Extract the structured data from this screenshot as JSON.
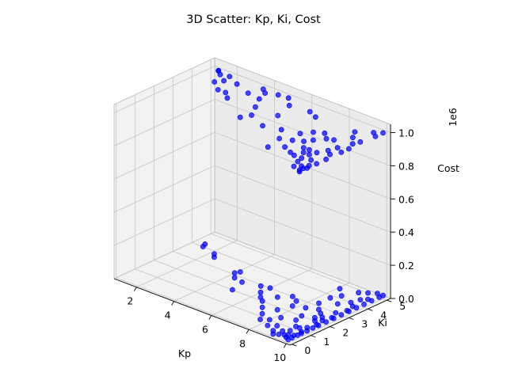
{
  "chart_data": {
    "type": "scatter",
    "title": "3D Scatter: Kp, Ki, Cost",
    "xlabel": "Kp",
    "ylabel": "Ki",
    "zlabel": "Cost",
    "z_offset_label": "1e6",
    "x_ticks": [
      "2",
      "4",
      "6",
      "8",
      "10"
    ],
    "y_ticks": [
      "0",
      "1",
      "2",
      "3",
      "4",
      "5"
    ],
    "z_ticks": [
      "0.0",
      "0.2",
      "0.4",
      "0.6",
      "0.8",
      "1.0"
    ],
    "xlim": [
      0.8,
      10.2
    ],
    "ylim": [
      -0.1,
      5.2
    ],
    "zlim": [
      0,
      1050000
    ],
    "grid": true,
    "marker_color": "#0000ff",
    "series": [
      {
        "points": [
          [
            1.2,
            5.0,
            1000000
          ],
          [
            1.2,
            5.0,
            1000000
          ],
          [
            1.5,
            4.8,
            1000000
          ],
          [
            2.0,
            4.5,
            1000000
          ],
          [
            1.8,
            4.2,
            1000000
          ],
          [
            2.8,
            3.8,
            1000000
          ],
          [
            3.2,
            3.5,
            1000000
          ],
          [
            2.4,
            3.8,
            1000000
          ],
          [
            1.9,
            4.9,
            1000000
          ],
          [
            2.6,
            4.6,
            1000000
          ],
          [
            3.5,
            4.3,
            1000000
          ],
          [
            4.0,
            4.7,
            1000000
          ],
          [
            4.5,
            4.9,
            1000000
          ],
          [
            5.0,
            4.95,
            1000000
          ],
          [
            3.7,
            4.9,
            1000000
          ],
          [
            4.2,
            4.2,
            1000000
          ],
          [
            5.5,
            4.5,
            1000000
          ],
          [
            4.6,
            3.6,
            1000000
          ],
          [
            5.0,
            3.0,
            1000000
          ],
          [
            4.8,
            2.6,
            1000000
          ],
          [
            5.8,
            3.6,
            1000000
          ],
          [
            6.5,
            4.6,
            1000000
          ],
          [
            7.0,
            4.4,
            1000000
          ],
          [
            6.0,
            2.6,
            1000000
          ],
          [
            6.8,
            2.8,
            1000000
          ],
          [
            7.3,
            2.2,
            1000000
          ],
          [
            7.6,
            3.0,
            1000000
          ],
          [
            7.8,
            2.4,
            1000000
          ],
          [
            8.2,
            2.6,
            1000000
          ],
          [
            8.0,
            1.8,
            1000000
          ],
          [
            8.5,
            1.6,
            1000000
          ],
          [
            8.6,
            2.2,
            1000000
          ],
          [
            8.9,
            1.9,
            1000000
          ],
          [
            9.2,
            1.5,
            1000000
          ],
          [
            9.3,
            2.2,
            1000000
          ],
          [
            9.5,
            2.6,
            1000000
          ],
          [
            9.8,
            2.4,
            1000000
          ],
          [
            9.6,
            3.0,
            1000000
          ],
          [
            10.0,
            3.2,
            1000000
          ],
          [
            9.9,
            3.9,
            1000000
          ],
          [
            10.0,
            4.6,
            1000000
          ],
          [
            10.0,
            5.0,
            1000000
          ],
          [
            9.7,
            4.8,
            1000000
          ],
          [
            9.4,
            4.0,
            1000000
          ],
          [
            9.0,
            3.4,
            1000000
          ],
          [
            8.7,
            3.3,
            1000000
          ],
          [
            8.4,
            2.9,
            1000000
          ],
          [
            8.3,
            3.6,
            1000000
          ],
          [
            7.9,
            3.4,
            1000000
          ],
          [
            9.1,
            4.4,
            1000000
          ],
          [
            9.8,
            3.6,
            1000000
          ],
          [
            10.0,
            2.8,
            1000000
          ],
          [
            10.0,
            2.0,
            1000000
          ],
          [
            9.6,
            1.6,
            1000000
          ],
          [
            8.8,
            1.5,
            1000000
          ],
          [
            7.5,
            1.4,
            1000000
          ],
          [
            10.0,
            1.5,
            1000000
          ],
          [
            10.0,
            1.0,
            1000000
          ],
          [
            9.9,
            1.2,
            1000000
          ],
          [
            9.7,
            1.0,
            1000000
          ],
          [
            10.0,
            0.6,
            1000000
          ],
          [
            9.5,
            0.8,
            1000000
          ],
          [
            9.3,
            1.2,
            1000000
          ],
          [
            9.9,
            0.7,
            1000000
          ],
          [
            9.9,
            0.9,
            1000000
          ],
          [
            9.2,
            1.9,
            1000000
          ],
          [
            8.9,
            2.2,
            1000000
          ],
          [
            1.5,
            4.0,
            20000
          ],
          [
            1.6,
            3.8,
            20000
          ],
          [
            2.4,
            3.6,
            20000
          ],
          [
            2.6,
            3.4,
            20000
          ],
          [
            4.2,
            2.9,
            20000
          ],
          [
            4.3,
            3.1,
            20000
          ],
          [
            4.5,
            2.6,
            20000
          ],
          [
            5.0,
            2.5,
            20000
          ],
          [
            5.2,
            1.8,
            20000
          ],
          [
            5.8,
            2.7,
            20000
          ],
          [
            6.2,
            2.8,
            20000
          ],
          [
            6.2,
            2.3,
            20000
          ],
          [
            6.5,
            2.0,
            20000
          ],
          [
            6.8,
            1.8,
            20000
          ],
          [
            7.0,
            2.4,
            20000
          ],
          [
            7.2,
            1.4,
            20000
          ],
          [
            7.4,
            2.8,
            20000
          ],
          [
            7.6,
            1.0,
            20000
          ],
          [
            7.8,
            2.6,
            20000
          ],
          [
            7.8,
            1.6,
            20000
          ],
          [
            8.0,
            2.2,
            20000
          ],
          [
            8.2,
            0.8,
            20000
          ],
          [
            8.4,
            1.2,
            20000
          ],
          [
            8.5,
            2.4,
            20000
          ],
          [
            8.6,
            3.0,
            20000
          ],
          [
            8.8,
            0.6,
            20000
          ],
          [
            9.0,
            2.6,
            20000
          ],
          [
            9.0,
            1.4,
            20000
          ],
          [
            9.2,
            3.4,
            20000
          ],
          [
            9.3,
            0.4,
            20000
          ],
          [
            9.4,
            1.0,
            20000
          ],
          [
            9.4,
            2.0,
            20000
          ],
          [
            9.5,
            3.8,
            20000
          ],
          [
            9.6,
            0.2,
            20000
          ],
          [
            9.6,
            1.8,
            20000
          ],
          [
            9.7,
            2.8,
            20000
          ],
          [
            9.8,
            0.1,
            20000
          ],
          [
            9.8,
            1.2,
            20000
          ],
          [
            9.8,
            4.4,
            20000
          ],
          [
            9.9,
            0.4,
            20000
          ],
          [
            9.9,
            0.8,
            20000
          ],
          [
            9.9,
            1.6,
            20000
          ],
          [
            9.9,
            2.4,
            20000
          ],
          [
            9.9,
            3.2,
            20000
          ],
          [
            10.0,
            0.0,
            20000
          ],
          [
            10.0,
            0.2,
            20000
          ],
          [
            10.0,
            0.5,
            20000
          ],
          [
            10.0,
            0.7,
            20000
          ],
          [
            10.0,
            1.0,
            20000
          ],
          [
            10.0,
            1.3,
            20000
          ],
          [
            10.0,
            1.6,
            20000
          ],
          [
            10.0,
            2.0,
            20000
          ],
          [
            10.0,
            2.4,
            20000
          ],
          [
            10.0,
            2.8,
            20000
          ],
          [
            10.0,
            3.2,
            20000
          ],
          [
            10.0,
            3.6,
            20000
          ],
          [
            10.0,
            4.0,
            20000
          ],
          [
            10.0,
            4.4,
            20000
          ],
          [
            10.0,
            4.8,
            20000
          ],
          [
            10.0,
            5.0,
            20000
          ],
          [
            9.7,
            0.3,
            20000
          ],
          [
            9.5,
            0.6,
            20000
          ],
          [
            9.6,
            1.0,
            20000
          ],
          [
            9.3,
            2.4,
            20000
          ],
          [
            8.9,
            1.8,
            20000
          ],
          [
            8.6,
            3.6,
            20000
          ],
          [
            8.8,
            4.0,
            20000
          ],
          [
            9.1,
            4.6,
            20000
          ],
          [
            9.4,
            4.8,
            20000
          ],
          [
            9.7,
            5.0,
            20000
          ],
          [
            8.3,
            4.4,
            20000
          ],
          [
            9.0,
            0.2,
            20000
          ],
          [
            9.2,
            0.0,
            20000
          ],
          [
            9.4,
            0.1,
            20000
          ],
          [
            8.5,
            0.4,
            20000
          ],
          [
            7.9,
            0.6,
            20000
          ],
          [
            9.6,
            2.2,
            20000
          ],
          [
            9.8,
            2.0,
            20000
          ],
          [
            9.8,
            3.6,
            20000
          ],
          [
            9.6,
            4.2,
            20000
          ]
        ]
      }
    ]
  }
}
